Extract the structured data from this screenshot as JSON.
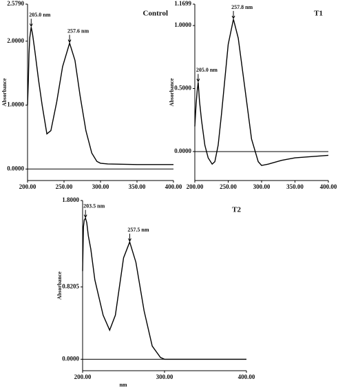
{
  "chart_data": [
    {
      "type": "line",
      "title": "Control",
      "y_label": "Absorbance",
      "x": [
        200,
        201,
        202,
        203,
        205,
        207,
        210,
        215,
        220,
        226.5,
        232,
        240,
        248,
        257.6,
        265,
        272,
        280,
        288,
        295,
        300,
        310,
        350,
        400
      ],
      "series": [
        {
          "color": "#000000",
          "values": [
            1.0,
            1.35,
            1.8,
            2.05,
            2.22,
            2.1,
            1.85,
            1.4,
            1.0,
            0.55,
            0.6,
            1.05,
            1.6,
            1.97,
            1.7,
            1.15,
            0.6,
            0.25,
            0.12,
            0.09,
            0.08,
            0.07,
            0.07
          ]
        }
      ],
      "xlim": [
        200,
        400
      ],
      "ylim": [
        -0.18,
        2.579
      ],
      "xticks": [
        {
          "value": 200,
          "label": "200.00"
        },
        {
          "value": 250,
          "label": "250.00"
        },
        {
          "value": 300,
          "label": "300.00"
        },
        {
          "value": 350,
          "label": "350.00"
        },
        {
          "value": 400,
          "label": "400.00"
        }
      ],
      "yticks": [
        {
          "value": 0,
          "label": "0.0000"
        },
        {
          "value": 1,
          "label": "1.0000"
        },
        {
          "value": 2,
          "label": "2.0000"
        },
        {
          "value": 2.579,
          "label": "2.5790"
        }
      ],
      "annotations": [
        {
          "text": "205.0 nm",
          "x": 205,
          "y": 2.22
        },
        {
          "text": "257.6 nm",
          "x": 257.6,
          "y": 1.97
        }
      ]
    },
    {
      "type": "line",
      "title": "T1",
      "y_label": "Absorbance",
      "x": [
        200,
        202,
        203.5,
        205,
        207,
        210,
        215,
        220,
        226,
        230,
        235,
        240,
        250,
        257.8,
        265,
        275,
        285,
        295,
        300,
        310,
        330,
        350,
        400
      ],
      "series": [
        {
          "color": "#000000",
          "values": [
            0.2,
            0.38,
            0.48,
            0.55,
            0.4,
            0.25,
            0.05,
            -0.05,
            -0.1,
            -0.08,
            0.05,
            0.3,
            0.85,
            1.05,
            0.9,
            0.5,
            0.1,
            -0.08,
            -0.11,
            -0.1,
            -0.07,
            -0.05,
            -0.03
          ]
        }
      ],
      "xlim": [
        200,
        400
      ],
      "ylim": [
        -0.23,
        1.1699
      ],
      "xticks": [
        {
          "value": 200,
          "label": "200.00"
        },
        {
          "value": 250,
          "label": "250.00"
        },
        {
          "value": 300,
          "label": "300.00"
        },
        {
          "value": 350,
          "label": "350.00"
        },
        {
          "value": 400,
          "label": "400.00"
        }
      ],
      "yticks": [
        {
          "value": 0,
          "label": "0.0000"
        },
        {
          "value": 0.5,
          "label": "0.5000"
        },
        {
          "value": 1,
          "label": "1.0000"
        },
        {
          "value": 1.1699,
          "label": "1.1699"
        }
      ],
      "annotations": [
        {
          "text": "205.0 nm",
          "x": 205,
          "y": 0.55
        },
        {
          "text": "257.8 nm",
          "x": 257.8,
          "y": 1.05
        }
      ]
    },
    {
      "type": "line",
      "title": "T2",
      "y_label": "Absorbance",
      "x_label": "nm",
      "x": [
        200,
        201,
        202,
        203.5,
        205,
        207,
        210,
        215,
        225,
        233,
        240,
        250,
        257.5,
        265,
        275,
        285,
        295,
        300,
        350,
        400
      ],
      "series": [
        {
          "color": "#000000",
          "values": [
            1.0,
            1.5,
            1.58,
            1.6,
            1.55,
            1.4,
            1.25,
            0.9,
            0.5,
            0.33,
            0.5,
            1.15,
            1.33,
            1.1,
            0.55,
            0.15,
            0.02,
            0,
            0,
            0
          ]
        }
      ],
      "xlim": [
        200,
        400
      ],
      "ylim": [
        -0.13,
        1.8
      ],
      "xticks": [
        {
          "value": 200,
          "label": "200.00"
        },
        {
          "value": 300,
          "label": "300.00"
        },
        {
          "value": 400,
          "label": "400.00"
        }
      ],
      "yticks": [
        {
          "value": 0,
          "label": "0.0000"
        },
        {
          "value": 0.8205,
          "label": "0.8205"
        },
        {
          "value": 1.8,
          "label": "1.8000"
        }
      ],
      "annotations": [
        {
          "text": "203.5 nm",
          "x": 203.5,
          "y": 1.6
        },
        {
          "text": "257.5 nm",
          "x": 257.5,
          "y": 1.33
        }
      ]
    }
  ]
}
